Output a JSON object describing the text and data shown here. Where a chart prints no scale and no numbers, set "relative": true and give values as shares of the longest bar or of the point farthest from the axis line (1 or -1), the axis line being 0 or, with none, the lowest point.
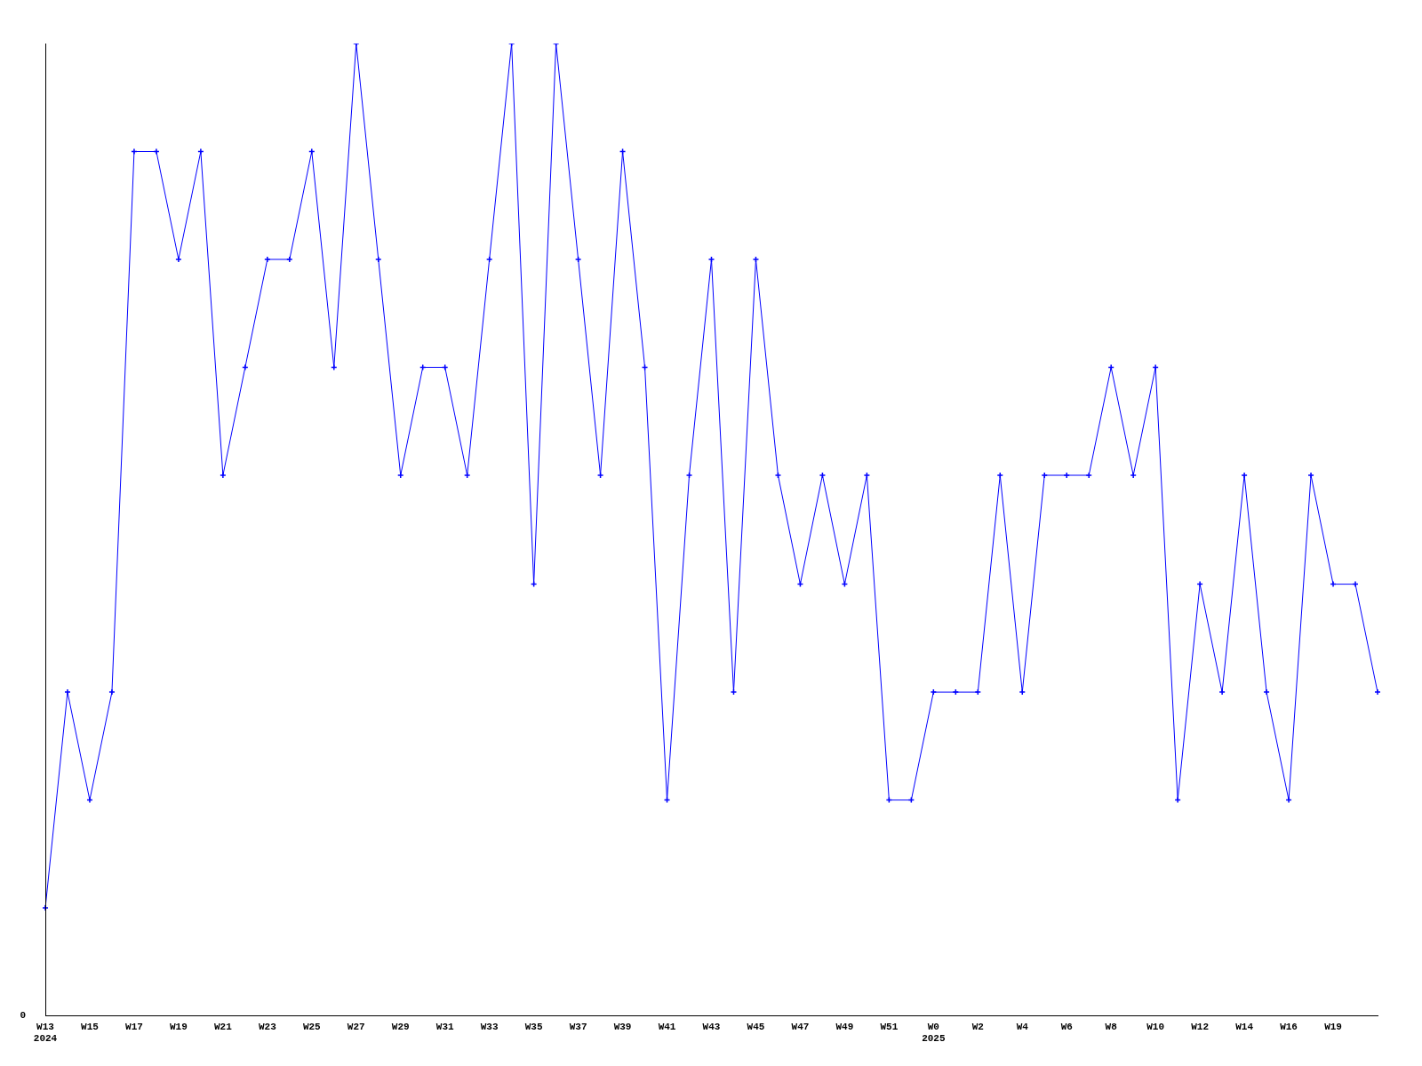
{
  "chart_data": {
    "type": "line",
    "relative": true,
    "grid": false,
    "legend": false,
    "marker": "cross",
    "line_style": "solid",
    "annotations": [
      "0"
    ],
    "categories": [
      "W13\n2024",
      null,
      "W15",
      null,
      "W17",
      null,
      "W19",
      null,
      "W21",
      null,
      "W23",
      null,
      "W25",
      null,
      "W27",
      null,
      "W29",
      null,
      "W31",
      null,
      "W33",
      null,
      "W35",
      null,
      "W37",
      null,
      "W39",
      null,
      "W41",
      null,
      "W43",
      null,
      "W45",
      null,
      "W47",
      null,
      "W49",
      null,
      "W51",
      null,
      "W0\n2025",
      null,
      "W2",
      null,
      "W4",
      null,
      "W6",
      null,
      "W8",
      null,
      "W10",
      null,
      "W12",
      null,
      "W14",
      null,
      "W16",
      null,
      "W19",
      null,
      null
    ],
    "series": [
      {
        "color": "#0000ff",
        "values": [
          0.111,
          0.333,
          0.222,
          0.333,
          0.889,
          0.889,
          0.778,
          0.889,
          0.556,
          0.667,
          0.778,
          0.778,
          0.889,
          0.667,
          1,
          0.778,
          0.556,
          0.667,
          0.667,
          0.556,
          0.778,
          1,
          0.444,
          1,
          0.778,
          0.556,
          0.889,
          0.667,
          0.222,
          0.556,
          0.778,
          0.333,
          0.778,
          0.556,
          0.444,
          0.556,
          0.444,
          0.556,
          0.222,
          0.222,
          0.333,
          0.333,
          0.333,
          0.556,
          0.333,
          0.556,
          0.556,
          0.556,
          0.667,
          0.556,
          0.667,
          0.222,
          0.444,
          0.333,
          0.556,
          0.333,
          0.222,
          0.556,
          0.444,
          0.444,
          0.333
        ]
      }
    ]
  }
}
